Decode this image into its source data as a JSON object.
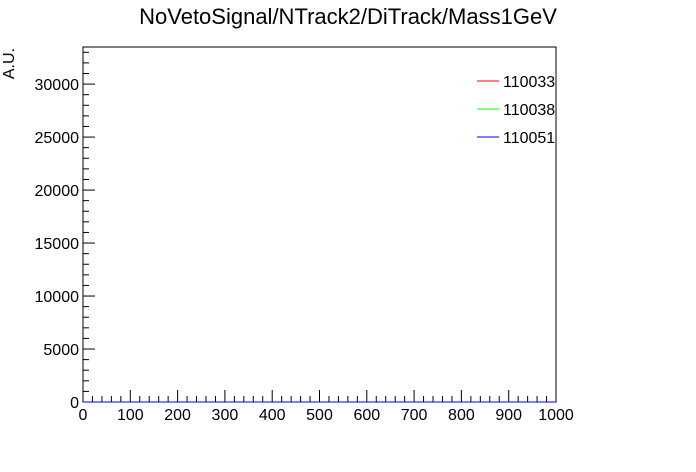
{
  "chart_data": {
    "type": "line",
    "title": "NoVetoSignal/NTrack2/DiTrack/Mass1GeV",
    "xlabel": "",
    "ylabel": "A.U.",
    "xlim": [
      0,
      1000
    ],
    "ylim": [
      0,
      33500
    ],
    "x_ticks": [
      0,
      100,
      200,
      300,
      400,
      500,
      600,
      700,
      800,
      900,
      1000
    ],
    "y_ticks": [
      0,
      5000,
      10000,
      15000,
      20000,
      25000,
      30000
    ],
    "grid": false,
    "legend_position": "top-right",
    "series": [
      {
        "name": "110033",
        "color": "#ff0000",
        "values": []
      },
      {
        "name": "110038",
        "color": "#00ff00",
        "values": []
      },
      {
        "name": "110051",
        "color": "#0000ff",
        "values": []
      }
    ]
  }
}
